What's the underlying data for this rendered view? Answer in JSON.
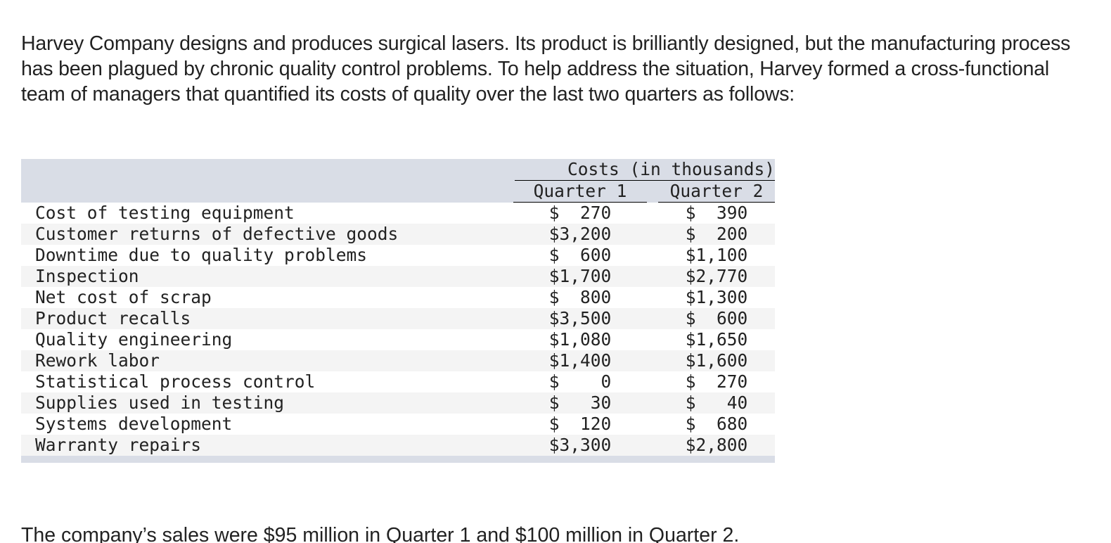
{
  "intro": "Harvey Company designs and produces surgical lasers. Its product is brilliantly designed, but the manufacturing process has been plagued by chronic quality control problems. To help address the situation, Harvey formed a cross-functional team of managers that quantified its costs of quality over the last two quarters as follows:",
  "table": {
    "group_header": "Costs (in thousands)",
    "columns": [
      "Quarter 1",
      "Quarter 2"
    ],
    "rows": [
      [
        "Cost of testing equipment",
        "$  270",
        "$  390"
      ],
      [
        "Customer returns of defective goods",
        "$3,200",
        "$  200"
      ],
      [
        "Downtime due to quality problems",
        "$  600",
        "$1,100"
      ],
      [
        "Inspection",
        "$1,700",
        "$2,770"
      ],
      [
        "Net cost of scrap",
        "$  800",
        "$1,300"
      ],
      [
        "Product recalls",
        "$3,500",
        "$  600"
      ],
      [
        "Quality engineering",
        "$1,080",
        "$1,650"
      ],
      [
        "Rework labor",
        "$1,400",
        "$1,600"
      ],
      [
        "Statistical process control",
        "$    0",
        "$  270"
      ],
      [
        "Supplies used in testing",
        "$   30",
        "$   40"
      ],
      [
        "Systems development",
        "$  120",
        "$  680"
      ],
      [
        "Warranty repairs",
        "$3,300",
        "$2,800"
      ]
    ]
  },
  "footer": "The company’s sales were $95 million in Quarter 1 and $100 million in Quarter 2."
}
